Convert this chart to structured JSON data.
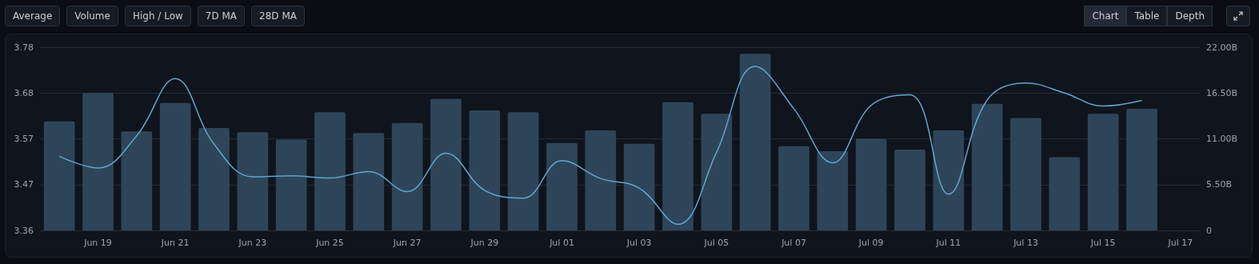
{
  "chart_data": {
    "type": "bar",
    "categories": [
      null,
      "Jun 19",
      null,
      "Jun 21",
      null,
      "Jun 23",
      null,
      "Jun 25",
      null,
      "Jun 27",
      null,
      "Jun 29",
      null,
      "Jul 01",
      null,
      "Jul 03",
      null,
      "Jul 05",
      null,
      "Jul 07",
      null,
      "Jul 09",
      null,
      "Jul 11",
      null,
      "Jul 13",
      null,
      "Jul 15",
      null,
      "Jul 17"
    ],
    "series": [
      {
        "axis": "y2",
        "color": "#2e4559",
        "values": [
          13.1,
          16.5,
          11.9,
          15.3,
          12.3,
          11.8,
          10.9,
          14.2,
          11.7,
          12.9,
          15.8,
          14.4,
          14.2,
          10.5,
          12.0,
          10.4,
          15.4,
          14.0,
          21.2,
          10.1,
          9.5,
          11.0,
          9.7,
          12.0,
          15.2,
          13.5,
          8.8,
          14.0,
          14.6,
          null
        ]
      },
      {
        "type": "line",
        "color": "#5ea6d2",
        "values": [
          3.53,
          3.503,
          3.577,
          3.708,
          3.558,
          3.483,
          3.485,
          3.48,
          3.495,
          3.449,
          3.537,
          3.452,
          3.434,
          3.52,
          3.479,
          3.457,
          3.374,
          3.539,
          3.736,
          3.639,
          3.515,
          3.647,
          3.671,
          3.443,
          3.659,
          3.698,
          3.675,
          3.645,
          3.658,
          null
        ]
      }
    ],
    "ylim": [
      3.36,
      3.78
    ],
    "yticks": [
      3.36,
      {
        "value": 3.465,
        "label": "3.47"
      },
      3.57,
      {
        "value": 3.675,
        "label": "3.68"
      },
      3.78
    ],
    "y2lim": [
      0,
      22
    ],
    "y2ticks": [
      0,
      {
        "value": 5.5,
        "label": "5.50B"
      },
      {
        "value": 11,
        "label": "11.00B"
      },
      {
        "value": 16.5,
        "label": "16.50B"
      },
      {
        "value": 22,
        "label": "22.00B"
      }
    ],
    "grid": "y",
    "marker": "none",
    "line_style": "solid",
    "annotations": [
      "Average",
      "Volume",
      "High / Low",
      "7D MA",
      "28D MA",
      "Chart",
      "Table",
      "Depth"
    ]
  }
}
